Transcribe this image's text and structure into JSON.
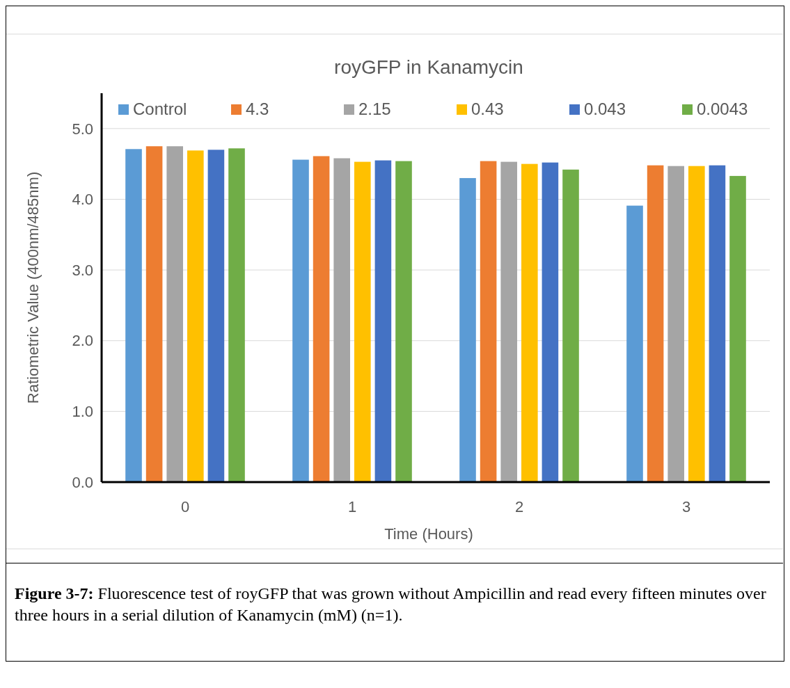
{
  "chart_data": {
    "type": "bar",
    "title": "royGFP in Kanamycin",
    "xlabel": "Time (Hours)",
    "ylabel": "Ratiometric Value (400nm/485nm)",
    "categories": [
      "0",
      "1",
      "2",
      "3"
    ],
    "series": [
      {
        "name": "Control",
        "color": "#5b9bd5",
        "values": [
          4.71,
          4.56,
          4.3,
          3.91
        ]
      },
      {
        "name": "4.3",
        "color": "#ed7d31",
        "values": [
          4.75,
          4.61,
          4.54,
          4.48
        ]
      },
      {
        "name": "2.15",
        "color": "#a5a5a5",
        "values": [
          4.75,
          4.58,
          4.53,
          4.47
        ]
      },
      {
        "name": "0.43",
        "color": "#ffc000",
        "values": [
          4.69,
          4.53,
          4.5,
          4.47
        ]
      },
      {
        "name": "0.043",
        "color": "#4472c4",
        "values": [
          4.7,
          4.55,
          4.52,
          4.48
        ]
      },
      {
        "name": "0.0043",
        "color": "#70ad47",
        "values": [
          4.72,
          4.54,
          4.42,
          4.33
        ]
      }
    ],
    "ylim": [
      0,
      5.5
    ],
    "yticks": [
      {
        "value": 0,
        "label": "0.0"
      },
      {
        "value": 1,
        "label": "1.0"
      },
      {
        "value": 2,
        "label": "2.0"
      },
      {
        "value": 3,
        "label": "3.0"
      },
      {
        "value": 4,
        "label": "4.0"
      },
      {
        "value": 5,
        "label": "5.0"
      }
    ],
    "grid": "y",
    "legend": "top",
    "annotations": [
      "Figure 3-7: Fluorescence test of royGFP that was grown without Ampicillin and read every fifteen minutes over three hours in a serial dilution of Kanamycin (mM) (n=1)."
    ]
  }
}
